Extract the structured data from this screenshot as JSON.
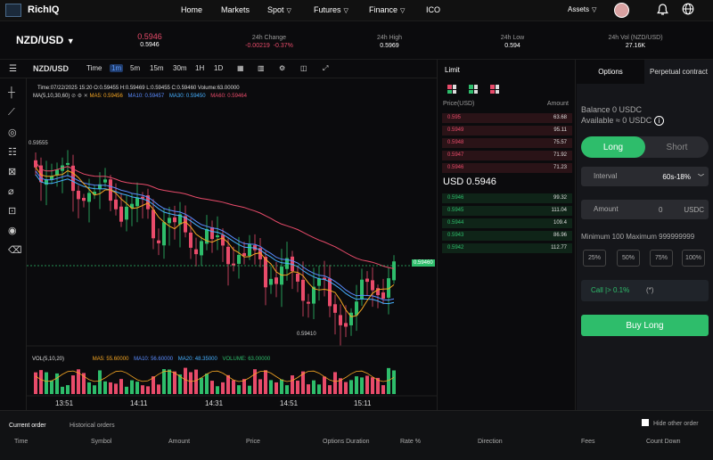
{
  "nav": {
    "brand": "RichIQ",
    "items": [
      {
        "label": "Home",
        "arrow": false
      },
      {
        "label": "Markets",
        "arrow": false
      },
      {
        "label": "Spot",
        "arrow": true
      },
      {
        "label": "Futures",
        "arrow": true
      },
      {
        "label": "Finance",
        "arrow": true
      },
      {
        "label": "ICO",
        "arrow": false
      }
    ],
    "assets_label": "Assets"
  },
  "ticker": {
    "pair": "NZD/USD",
    "price": "0.5946",
    "price_sub": "0.5946",
    "change_label": "24h Change",
    "change_value": "-0.00219",
    "change_pct": "-0.37%",
    "high_label": "24h High",
    "high_value": "0.5969",
    "low_label": "24h Low",
    "low_value": "0.594",
    "vol_label": "24h Vol (NZD/USD)",
    "vol_value": "27.16K"
  },
  "chart_toolbar": {
    "symbol": "NZD/USD",
    "time_label": "Time",
    "intervals": [
      "1m",
      "5m",
      "15m",
      "30m",
      "1H",
      "1D"
    ],
    "selected_interval": "1m"
  },
  "chart": {
    "ohlc_text": "Time:07/22/2025 15:20     O:0.59455     H:0.59469     L:0.59455     C:0.59460     Volume:63.00000",
    "ma_text": [
      "MA(5,10,30,60)",
      "MA5: 0.59456",
      "MA10: 0.59457",
      "MA30: 0.59450",
      "MA60: 0.59464"
    ],
    "price_tag": "0.59460",
    "high_marker": "0.59555",
    "low_marker": "0.59410",
    "vol_text": [
      "VOL(5,10,20)",
      "MA5: 55.60000",
      "MA10: 56.60000",
      "MA20: 48.35000",
      "VOLUME: 63.00000"
    ],
    "time_ticks": [
      "13:51",
      "14:11",
      "14:31",
      "14:51",
      "15:11"
    ]
  },
  "orderbook": {
    "title": "Limit",
    "price_header": "Price(USD)",
    "amount_header": "Amount",
    "asks": [
      {
        "price": "0.595",
        "amount": "63.68"
      },
      {
        "price": "0.5949",
        "amount": "95.11"
      },
      {
        "price": "0.5948",
        "amount": "75.57"
      },
      {
        "price": "0.5947",
        "amount": "71.92"
      },
      {
        "price": "0.5946",
        "amount": "71.23"
      }
    ],
    "mid": "USD 0.5946",
    "bids": [
      {
        "price": "0.5946",
        "amount": "99.32"
      },
      {
        "price": "0.5945",
        "amount": "111.04"
      },
      {
        "price": "0.5944",
        "amount": "109.4"
      },
      {
        "price": "0.5943",
        "amount": "86.96"
      },
      {
        "price": "0.5942",
        "amount": "112.77"
      }
    ]
  },
  "trade": {
    "tabs": [
      "Options",
      "Perpetual contract"
    ],
    "balance": "Balance  0  USDC",
    "available": "Available ≈  0  USDC",
    "long": "Long",
    "short": "Short",
    "interval_label": "Interval",
    "interval_value": "60s-18%",
    "amount_label": "Amount",
    "amount_value": "0",
    "amount_unit": "USDC",
    "min_max": "Minimum 100   Maximum 999999999",
    "pcts": [
      "25%",
      "50%",
      "75%",
      "100%"
    ],
    "call": "Call |> 0.1%",
    "call_suffix": "(*)",
    "buy": "Buy Long"
  },
  "orders": {
    "tabs": [
      "Current order",
      "Historical orders"
    ],
    "hide_other": "Hide other order",
    "columns": [
      "Time",
      "Symbol",
      "Amount",
      "Price",
      "Options Duration",
      "Rate %",
      "Direction",
      "Fees",
      "Count Down"
    ]
  },
  "colors": {
    "up": "#2ebd6b",
    "down": "#e84b6a",
    "accent": "#2ebd6b"
  }
}
